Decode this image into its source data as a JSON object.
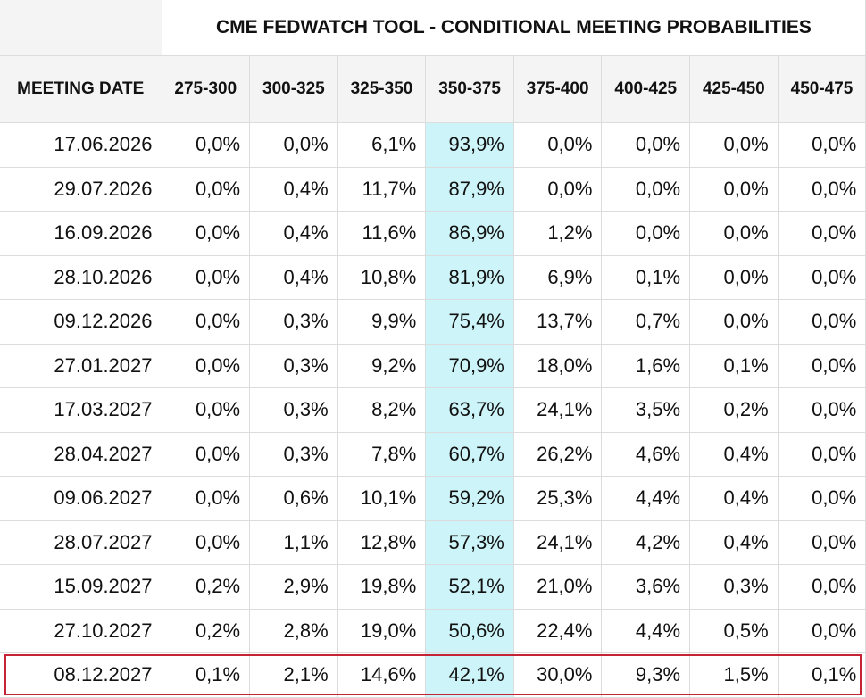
{
  "table": {
    "title": "CME FEDWATCH TOOL - CONDITIONAL MEETING PROBABILITIES",
    "meeting_header": "MEETING DATE",
    "rate_ranges": [
      "275-300",
      "300-325",
      "325-350",
      "350-375",
      "375-400",
      "400-425",
      "425-450",
      "450-475"
    ],
    "highlight_column": "350-375",
    "highlight_color": "#cdf4f8",
    "highlight_row_border_color": "#c42434",
    "highlighted_row": "08.12.2027",
    "rows": [
      {
        "date": "17.06.2026",
        "values": [
          "0,0%",
          "0,0%",
          "6,1%",
          "93,9%",
          "0,0%",
          "0,0%",
          "0,0%",
          "0,0%"
        ]
      },
      {
        "date": "29.07.2026",
        "values": [
          "0,0%",
          "0,4%",
          "11,7%",
          "87,9%",
          "0,0%",
          "0,0%",
          "0,0%",
          "0,0%"
        ]
      },
      {
        "date": "16.09.2026",
        "values": [
          "0,0%",
          "0,4%",
          "11,6%",
          "86,9%",
          "1,2%",
          "0,0%",
          "0,0%",
          "0,0%"
        ]
      },
      {
        "date": "28.10.2026",
        "values": [
          "0,0%",
          "0,4%",
          "10,8%",
          "81,9%",
          "6,9%",
          "0,1%",
          "0,0%",
          "0,0%"
        ]
      },
      {
        "date": "09.12.2026",
        "values": [
          "0,0%",
          "0,3%",
          "9,9%",
          "75,4%",
          "13,7%",
          "0,7%",
          "0,0%",
          "0,0%"
        ]
      },
      {
        "date": "27.01.2027",
        "values": [
          "0,0%",
          "0,3%",
          "9,2%",
          "70,9%",
          "18,0%",
          "1,6%",
          "0,1%",
          "0,0%"
        ]
      },
      {
        "date": "17.03.2027",
        "values": [
          "0,0%",
          "0,3%",
          "8,2%",
          "63,7%",
          "24,1%",
          "3,5%",
          "0,2%",
          "0,0%"
        ]
      },
      {
        "date": "28.04.2027",
        "values": [
          "0,0%",
          "0,3%",
          "7,8%",
          "60,7%",
          "26,2%",
          "4,6%",
          "0,4%",
          "0,0%"
        ]
      },
      {
        "date": "09.06.2027",
        "values": [
          "0,0%",
          "0,6%",
          "10,1%",
          "59,2%",
          "25,3%",
          "4,4%",
          "0,4%",
          "0,0%"
        ]
      },
      {
        "date": "28.07.2027",
        "values": [
          "0,0%",
          "1,1%",
          "12,8%",
          "57,3%",
          "24,1%",
          "4,2%",
          "0,4%",
          "0,0%"
        ]
      },
      {
        "date": "15.09.2027",
        "values": [
          "0,2%",
          "2,9%",
          "19,8%",
          "52,1%",
          "21,0%",
          "3,6%",
          "0,3%",
          "0,0%"
        ]
      },
      {
        "date": "27.10.2027",
        "values": [
          "0,2%",
          "2,8%",
          "19,0%",
          "50,6%",
          "22,4%",
          "4,4%",
          "0,5%",
          "0,0%"
        ]
      },
      {
        "date": "08.12.2027",
        "values": [
          "0,1%",
          "2,1%",
          "14,6%",
          "42,1%",
          "30,0%",
          "9,3%",
          "1,5%",
          "0,1%"
        ]
      }
    ]
  }
}
